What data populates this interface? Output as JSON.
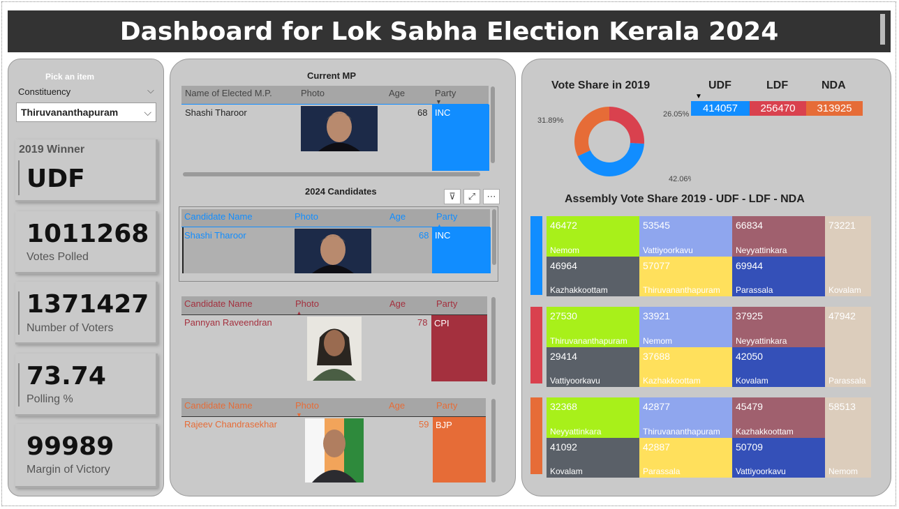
{
  "header": {
    "title": "Dashboard for Lok Sabha Election Kerala 2024"
  },
  "slicer": {
    "hint": "Pick an item",
    "label": "Constituency",
    "value": "Thiruvananthapuram"
  },
  "cards": [
    {
      "label": "2019 Winner",
      "value": "UDF"
    },
    {
      "label": "Votes Polled",
      "value": "1011268"
    },
    {
      "label": "Number of Voters",
      "value": "1371427"
    },
    {
      "label": "Polling %",
      "value": "73.74"
    },
    {
      "label": "Margin of Victory",
      "value": "99989"
    }
  ],
  "current_mp": {
    "title": "Current MP",
    "headers": [
      "Name of Elected M.P.",
      "Photo",
      "Age",
      "Party"
    ],
    "row": {
      "name": "Shashi Tharoor",
      "age": "68",
      "party": "INC"
    }
  },
  "candidates": {
    "title": "2024 Candidates",
    "headers": [
      "Candidate Name",
      "Photo",
      "Age",
      "Party"
    ],
    "rows": [
      {
        "name": "Shashi Tharoor",
        "age": "68",
        "party": "INC",
        "color": "#118DFF"
      },
      {
        "name": "Pannyan Raveendran",
        "age": "78",
        "party": "CPI",
        "color": "#A4303E"
      },
      {
        "name": "Rajeev Chandrasekhar",
        "age": "59",
        "party": "BJP",
        "color": "#E66C37"
      }
    ]
  },
  "vote_share": {
    "title": "Vote Share in 2019",
    "slices": [
      {
        "alliance": "UDF",
        "value": 414057,
        "label": "42.06%",
        "color": "#118DFF"
      },
      {
        "alliance": "LDF",
        "value": 256470,
        "label": "26.05%",
        "color": "#D9414E"
      },
      {
        "alliance": "NDA",
        "value": 313925,
        "label": "31.89%",
        "color": "#E66C37"
      }
    ]
  },
  "alliance_table": {
    "headers": [
      "UDF",
      "LDF",
      "NDA"
    ],
    "values": [
      "414057",
      "256470",
      "313925"
    ],
    "colors": [
      "#118DFF",
      "#D9414E",
      "#E66C37"
    ]
  },
  "assembly": {
    "title": "Assembly Vote Share 2019 - UDF - LDF - NDA",
    "groups": [
      {
        "color": "#118DFF",
        "cells": [
          {
            "value": "46472",
            "name": "Nemom"
          },
          {
            "value": "53545",
            "name": "Vattiyoorkavu"
          },
          {
            "value": "66834",
            "name": "Neyyattinkara"
          },
          {
            "value": "73221",
            "name": "Kovalam"
          },
          {
            "value": "46964",
            "name": "Kazhakkoottam"
          },
          {
            "value": "57077",
            "name": "Thiruvananthapuram"
          },
          {
            "value": "69944",
            "name": "Parassala"
          }
        ]
      },
      {
        "color": "#D9414E",
        "cells": [
          {
            "value": "27530",
            "name": "Thiruvananthapuram"
          },
          {
            "value": "33921",
            "name": "Nemom"
          },
          {
            "value": "37925",
            "name": "Neyyattinkara"
          },
          {
            "value": "47942",
            "name": "Parassala"
          },
          {
            "value": "29414",
            "name": "Vattiyoorkavu"
          },
          {
            "value": "37688",
            "name": "Kazhakkoottam"
          },
          {
            "value": "42050",
            "name": "Kovalam"
          }
        ]
      },
      {
        "color": "#E66C37",
        "cells": [
          {
            "value": "32368",
            "name": "Neyyattinkara"
          },
          {
            "value": "42877",
            "name": "Thiruvananthapuram"
          },
          {
            "value": "45479",
            "name": "Kazhakkoottam"
          },
          {
            "value": "58513",
            "name": "Nemom"
          },
          {
            "value": "41092",
            "name": "Kovalam"
          },
          {
            "value": "42887",
            "name": "Parassala"
          },
          {
            "value": "50709",
            "name": "Vattiyoorkavu"
          }
        ]
      }
    ]
  },
  "chart_data": {
    "type": "pie",
    "title": "Vote Share in 2019",
    "categories": [
      "UDF",
      "LDF",
      "NDA"
    ],
    "values": [
      414057,
      256470,
      313925
    ],
    "labels": [
      "42.06%",
      "26.05%",
      "31.89%"
    ]
  }
}
